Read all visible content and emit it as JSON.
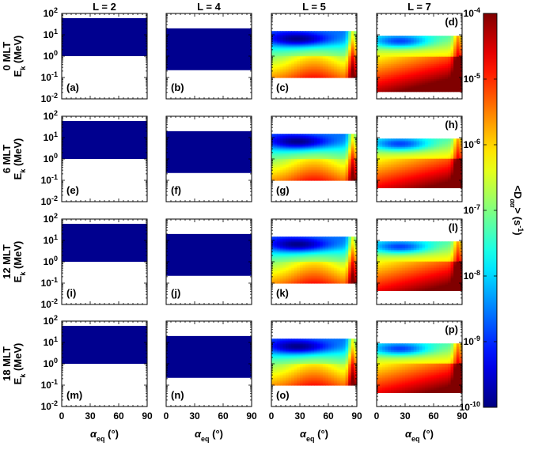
{
  "chart_data": {
    "type": "heatmap",
    "columns": [
      {
        "label": "L = 2",
        "L": 2
      },
      {
        "label": "L = 4",
        "L": 4
      },
      {
        "label": "L = 5",
        "L": 5
      },
      {
        "label": "L = 7",
        "L": 7
      }
    ],
    "rows": [
      {
        "label": "0 MLT"
      },
      {
        "label": "6 MLT"
      },
      {
        "label": "12 MLT"
      },
      {
        "label": "18 MLT"
      }
    ],
    "ylabel_main": "E",
    "ylabel_sub": "k",
    "ylabel_unit": " (MeV)",
    "xlabel_main": "α",
    "xlabel_sub": "eq",
    "xlabel_unit": " (°)",
    "xlim": [
      0,
      90
    ],
    "xticks": [
      "0",
      "30",
      "60",
      "90"
    ],
    "ylim": [
      0.01,
      100
    ],
    "yscale": "log",
    "yticks": [
      {
        "base": "10",
        "exp": "2",
        "value": 100
      },
      {
        "base": "10",
        "exp": "1",
        "value": 10
      },
      {
        "base": "10",
        "exp": "0",
        "value": 1
      },
      {
        "base": "10",
        "exp": "-1",
        "value": 0.1
      },
      {
        "base": "10",
        "exp": "-2",
        "value": 0.01
      }
    ],
    "panels": [
      {
        "letter": "(a)",
        "row": 0,
        "col": 0,
        "emin": 1.0,
        "emax": 60,
        "kind": "uniform"
      },
      {
        "letter": "(b)",
        "row": 0,
        "col": 1,
        "emin": 0.22,
        "emax": 20,
        "kind": "uniform"
      },
      {
        "letter": "(c)",
        "row": 0,
        "col": 2,
        "emin": 0.1,
        "emax": 15,
        "kind": "L5"
      },
      {
        "letter": "(d)",
        "row": 0,
        "col": 3,
        "emin": 0.022,
        "emax": 9,
        "kind": "L7"
      },
      {
        "letter": "(e)",
        "row": 1,
        "col": 0,
        "emin": 1.0,
        "emax": 60,
        "kind": "uniform"
      },
      {
        "letter": "(f)",
        "row": 1,
        "col": 1,
        "emin": 0.22,
        "emax": 20,
        "kind": "uniform"
      },
      {
        "letter": "(g)",
        "row": 1,
        "col": 2,
        "emin": 0.1,
        "emax": 15,
        "kind": "L5"
      },
      {
        "letter": "(h)",
        "row": 1,
        "col": 3,
        "emin": 0.045,
        "emax": 9,
        "kind": "L7"
      },
      {
        "letter": "(i)",
        "row": 2,
        "col": 0,
        "emin": 1.0,
        "emax": 60,
        "kind": "uniform"
      },
      {
        "letter": "(j)",
        "row": 2,
        "col": 1,
        "emin": 0.22,
        "emax": 20,
        "kind": "uniform"
      },
      {
        "letter": "(k)",
        "row": 2,
        "col": 2,
        "emin": 0.1,
        "emax": 15,
        "kind": "L5"
      },
      {
        "letter": "(l)",
        "row": 2,
        "col": 3,
        "emin": 0.045,
        "emax": 9,
        "kind": "L7"
      },
      {
        "letter": "(m)",
        "row": 3,
        "col": 0,
        "emin": 1.0,
        "emax": 60,
        "kind": "uniform"
      },
      {
        "letter": "(n)",
        "row": 3,
        "col": 1,
        "emin": 0.22,
        "emax": 20,
        "kind": "uniform"
      },
      {
        "letter": "(o)",
        "row": 3,
        "col": 2,
        "emin": 0.1,
        "emax": 15,
        "kind": "L5"
      },
      {
        "letter": "(p)",
        "row": 3,
        "col": 3,
        "emin": 0.045,
        "emax": 9,
        "kind": "L7"
      }
    ],
    "colorbar": {
      "label_main": "<D",
      "label_sub": "αα",
      "label_tail": "> (s",
      "label_sup": "-1",
      "label_end": ")",
      "scale": "log",
      "range": [
        1e-10,
        0.0001
      ],
      "ticks": [
        {
          "base": "10",
          "exp": "-4"
        },
        {
          "base": "10",
          "exp": "-5"
        },
        {
          "base": "10",
          "exp": "-6"
        },
        {
          "base": "10",
          "exp": "-7"
        },
        {
          "base": "10",
          "exp": "-8"
        },
        {
          "base": "10",
          "exp": "-9"
        },
        {
          "base": "10",
          "exp": "-10"
        }
      ],
      "colormap": "jet"
    },
    "uniform_color": "#00008f"
  }
}
